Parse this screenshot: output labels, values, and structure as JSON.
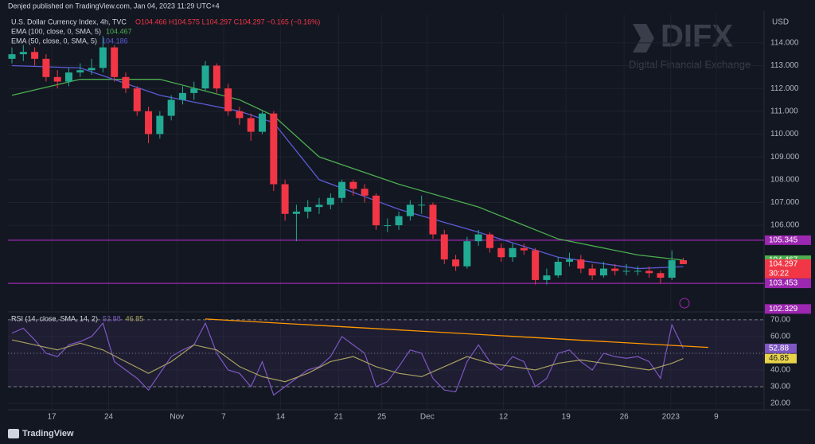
{
  "header": {
    "published": "Denjed published on TradingView.com, Jan 04, 2023 11:29 UTC+4",
    "brand": "DIFX",
    "brand_sub": "Digital Financial Exchange",
    "currency": "USD",
    "footer": "TradingView"
  },
  "chart_data": [
    {
      "type": "candlestick",
      "title": "U.S. Dollar Currency Index, 4h, TVC",
      "ohlc_text": "O104.466 H104.575 L104.297 C104.297 −0.165 (−0.16%)",
      "up_color": "#22ab94",
      "down_color": "#f23645",
      "countdown": "30:22",
      "x": [
        0,
        1,
        2,
        3,
        4,
        5,
        6,
        7,
        8,
        9,
        10,
        11,
        12,
        13,
        14,
        15,
        16,
        17,
        18,
        19,
        20,
        21,
        22,
        23,
        24,
        25,
        26,
        27,
        28,
        29,
        30,
        31,
        32,
        33,
        34,
        35,
        36,
        37,
        38,
        39,
        40,
        41,
        42,
        43,
        44,
        45,
        46,
        47,
        48,
        49,
        50,
        51,
        52,
        53,
        54,
        55,
        56,
        57,
        58,
        59
      ],
      "open": [
        113.3,
        113.5,
        113.6,
        113.3,
        112.5,
        112.3,
        112.7,
        112.8,
        112.9,
        113.8,
        112.5,
        112.0,
        111.0,
        110.0,
        110.8,
        111.5,
        111.8,
        112.0,
        113.0,
        112.0,
        111.0,
        110.7,
        110.1,
        110.9,
        107.8,
        106.5,
        106.6,
        106.8,
        106.9,
        107.2,
        107.9,
        107.6,
        107.3,
        106.0,
        106.0,
        106.4,
        106.9,
        106.9,
        105.6,
        104.5,
        104.2,
        105.3,
        105.6,
        105.0,
        104.6,
        105.0,
        104.9,
        103.6,
        103.8,
        104.4,
        104.5,
        104.1,
        103.8,
        104.1,
        104.0,
        104.0,
        104.0,
        103.9,
        103.7,
        104.466
      ],
      "high": [
        113.8,
        113.9,
        113.8,
        113.5,
        112.8,
        112.9,
        113.1,
        113.3,
        114.3,
        113.9,
        112.7,
        112.1,
        111.2,
        111.0,
        111.7,
        112.1,
        112.3,
        113.2,
        113.1,
        112.2,
        111.2,
        110.9,
        111.0,
        111.0,
        108.0,
        106.9,
        107.1,
        107.2,
        107.4,
        108.0,
        108.0,
        107.8,
        107.4,
        106.3,
        106.6,
        107.1,
        107.3,
        107.0,
        105.8,
        104.7,
        105.5,
        105.8,
        105.7,
        105.2,
        105.2,
        105.2,
        105.0,
        104.1,
        104.6,
        104.8,
        104.7,
        104.3,
        104.4,
        104.3,
        104.3,
        104.2,
        104.2,
        104.0,
        104.9,
        104.575
      ],
      "low": [
        113.1,
        113.2,
        113.0,
        112.3,
        112.0,
        112.1,
        112.5,
        112.6,
        112.7,
        112.3,
        111.8,
        110.8,
        109.6,
        109.8,
        110.6,
        111.3,
        111.5,
        111.9,
        111.8,
        110.8,
        110.4,
        109.7,
        110.0,
        107.5,
        106.2,
        105.3,
        106.3,
        106.5,
        106.7,
        107.0,
        107.3,
        107.0,
        105.8,
        105.7,
        105.8,
        106.2,
        106.5,
        105.4,
        104.3,
        104.0,
        104.1,
        105.1,
        104.8,
        104.4,
        104.4,
        104.7,
        103.4,
        103.4,
        103.7,
        104.2,
        103.9,
        103.6,
        103.7,
        103.8,
        103.8,
        103.8,
        103.7,
        103.45,
        103.6,
        104.297
      ],
      "close": [
        113.5,
        113.6,
        113.3,
        112.5,
        112.3,
        112.7,
        112.8,
        112.9,
        113.8,
        112.5,
        112.0,
        111.0,
        110.0,
        110.8,
        111.5,
        111.8,
        112.0,
        113.0,
        112.0,
        111.0,
        110.7,
        110.1,
        110.9,
        107.8,
        106.5,
        106.6,
        106.8,
        106.9,
        107.2,
        107.9,
        107.6,
        107.3,
        106.0,
        106.0,
        106.4,
        106.9,
        106.9,
        105.6,
        104.5,
        104.2,
        105.3,
        105.6,
        105.0,
        104.6,
        105.0,
        104.9,
        103.6,
        103.8,
        104.4,
        104.5,
        104.1,
        103.8,
        104.1,
        104.0,
        104.0,
        104.0,
        103.9,
        103.7,
        104.466,
        104.297
      ],
      "series": [
        {
          "name": "EMA (100, close, 0, SMA, 5)",
          "color": "#4caf50",
          "x": [
            0,
            6,
            13,
            20,
            23,
            27,
            34,
            41,
            48,
            55,
            59
          ],
          "values": [
            111.7,
            112.4,
            112.4,
            111.5,
            110.8,
            109.0,
            107.8,
            106.8,
            105.4,
            104.7,
            104.467
          ]
        },
        {
          "name": "EMA (50, close, 0, SMA, 5)",
          "color": "#5b5bd6",
          "x": [
            0,
            6,
            13,
            20,
            23,
            27,
            34,
            41,
            48,
            55,
            59
          ],
          "values": [
            113.0,
            112.9,
            111.7,
            111.0,
            110.5,
            108.0,
            106.7,
            105.7,
            104.6,
            104.1,
            104.186
          ]
        }
      ],
      "hlines": [
        {
          "value": 105.345,
          "color": "#9c27b0"
        },
        {
          "value": 103.453,
          "color": "#9c27b0"
        }
      ],
      "axis_markers": [
        {
          "value": 102.329,
          "color": "#9c27b0"
        }
      ],
      "xlim": [
        -0.35,
        66.1
      ],
      "ylim": [
        102.27,
        115.25
      ],
      "yticks": [
        {
          "value": 106,
          "label": "106.000"
        },
        {
          "value": 107,
          "label": "107.000"
        },
        {
          "value": 108,
          "label": "108.000"
        },
        {
          "value": 109,
          "label": "109.000"
        },
        {
          "value": 110,
          "label": "110.000"
        },
        {
          "value": 111,
          "label": "111.000"
        },
        {
          "value": 112,
          "label": "112.000"
        },
        {
          "value": 113,
          "label": "113.000"
        },
        {
          "value": 114,
          "label": "114.000"
        }
      ],
      "grid": true
    },
    {
      "type": "line",
      "title": "RSI (14, close, SMA, 14, 2)",
      "series": [
        {
          "name": "RSI",
          "color": "#7e57c2",
          "x": [
            0,
            1,
            2,
            3,
            4,
            5,
            6,
            7,
            8,
            9,
            10,
            11,
            12,
            13,
            14,
            15,
            16,
            17,
            18,
            19,
            20,
            21,
            22,
            23,
            24,
            25,
            26,
            27,
            28,
            29,
            30,
            31,
            32,
            33,
            34,
            35,
            36,
            37,
            38,
            39,
            40,
            41,
            42,
            43,
            44,
            45,
            46,
            47,
            48,
            49,
            50,
            51,
            52,
            53,
            54,
            55,
            56,
            57,
            58,
            59
          ],
          "values": [
            62,
            65,
            58,
            50,
            48,
            55,
            57,
            60,
            68,
            45,
            40,
            35,
            28,
            38,
            48,
            52,
            55,
            68,
            50,
            40,
            38,
            30,
            45,
            25,
            30,
            35,
            40,
            42,
            48,
            60,
            55,
            50,
            30,
            33,
            42,
            52,
            50,
            35,
            28,
            27,
            45,
            55,
            45,
            40,
            48,
            45,
            30,
            35,
            50,
            52,
            45,
            40,
            50,
            48,
            47,
            48,
            45,
            35,
            67,
            52.88
          ]
        },
        {
          "name": "RSI-based MA",
          "color": "#a8a060",
          "x": [
            0,
            2,
            4,
            6,
            8,
            10,
            12,
            14,
            16,
            18,
            20,
            22,
            24,
            26,
            28,
            30,
            32,
            34,
            36,
            38,
            40,
            42,
            44,
            46,
            48,
            50,
            52,
            54,
            56,
            58,
            59
          ],
          "values": [
            58,
            55,
            52,
            56,
            52,
            45,
            38,
            45,
            55,
            52,
            42,
            36,
            33,
            38,
            45,
            48,
            42,
            38,
            36,
            42,
            48,
            44,
            42,
            40,
            44,
            46,
            44,
            42,
            40,
            44,
            46.85
          ]
        }
      ],
      "trendline": {
        "x": [
          17.0,
          61.2
        ],
        "values": [
          70.5,
          53.5
        ],
        "color": "#ff9800"
      },
      "band": [
        30,
        70
      ],
      "midline": 50,
      "xlim": [
        -0.35,
        66.1
      ],
      "ylim": [
        16.2,
        73.3
      ],
      "yticks": [
        {
          "value": 20,
          "label": "20.00"
        },
        {
          "value": 30,
          "label": "30.00"
        },
        {
          "value": 40,
          "label": "40.00"
        },
        {
          "value": 50,
          "label": "50.00"
        },
        {
          "value": 60,
          "label": "60.00"
        },
        {
          "value": 70,
          "label": "70.00"
        }
      ],
      "xticks": [
        {
          "value": 3.5,
          "label": "17"
        },
        {
          "value": 8.5,
          "label": "24"
        },
        {
          "value": 14.5,
          "label": "Nov"
        },
        {
          "value": 18.6,
          "label": "7"
        },
        {
          "value": 23.6,
          "label": "14"
        },
        {
          "value": 28.7,
          "label": "21"
        },
        {
          "value": 32.5,
          "label": "25"
        },
        {
          "value": 36.5,
          "label": "Dec"
        },
        {
          "value": 43.2,
          "label": "12"
        },
        {
          "value": 48.7,
          "label": "19"
        },
        {
          "value": 53.8,
          "label": "26"
        },
        {
          "value": 57.9,
          "label": "2023"
        },
        {
          "value": 61.9,
          "label": "9"
        }
      ],
      "grid": true
    }
  ]
}
